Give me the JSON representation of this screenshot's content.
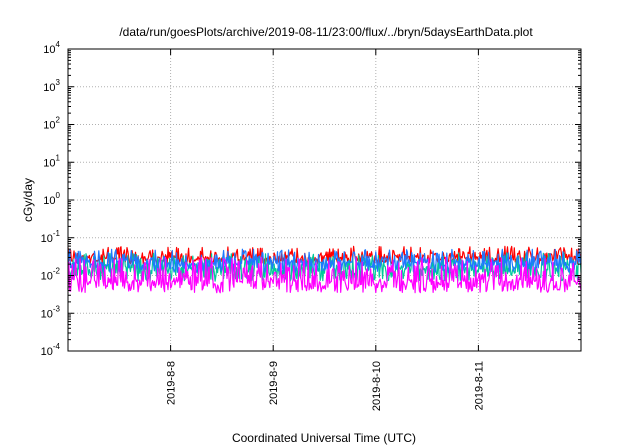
{
  "chart_data": {
    "type": "line",
    "title": "/data/run/goesPlots/archive/2019-08-11/23:00/flux/../bryn/5daysEarthData.plot",
    "xlabel": "Coordinated Universal Time (UTC)",
    "ylabel": "cGy/day",
    "y_scale": "log",
    "ylim": [
      0.0001,
      10000
    ],
    "y_ticks": [
      {
        "base": "10",
        "exp": "-4"
      },
      {
        "base": "10",
        "exp": "-3"
      },
      {
        "base": "10",
        "exp": "-2"
      },
      {
        "base": "10",
        "exp": "-1"
      },
      {
        "base": "10",
        "exp": "0"
      },
      {
        "base": "10",
        "exp": "1"
      },
      {
        "base": "10",
        "exp": "2"
      },
      {
        "base": "10",
        "exp": "3"
      },
      {
        "base": "10",
        "exp": "4"
      }
    ],
    "xlim": [
      "2019-8-7 00:00",
      "2019-8-12 00:00"
    ],
    "x_tick_labels": [
      "2019-8-8",
      "2019-8-9",
      "2019-8-10",
      "2019-8-11"
    ],
    "x_tick_days": [
      1,
      2,
      3,
      4
    ],
    "x_range_days": [
      0,
      5
    ],
    "grid": true,
    "series": [
      {
        "color": "#ff0000",
        "median": 0.03,
        "low": 0.02,
        "high": 0.06,
        "values": []
      },
      {
        "color": "#00c89a",
        "median": 0.015,
        "low": 0.007,
        "high": 0.04,
        "values": []
      },
      {
        "color": "#1e78ff",
        "median": 0.022,
        "low": 0.012,
        "high": 0.05,
        "values": []
      },
      {
        "color": "#ff00ff",
        "median": 0.007,
        "low": 0.0035,
        "high": 0.03,
        "values": []
      }
    ]
  }
}
